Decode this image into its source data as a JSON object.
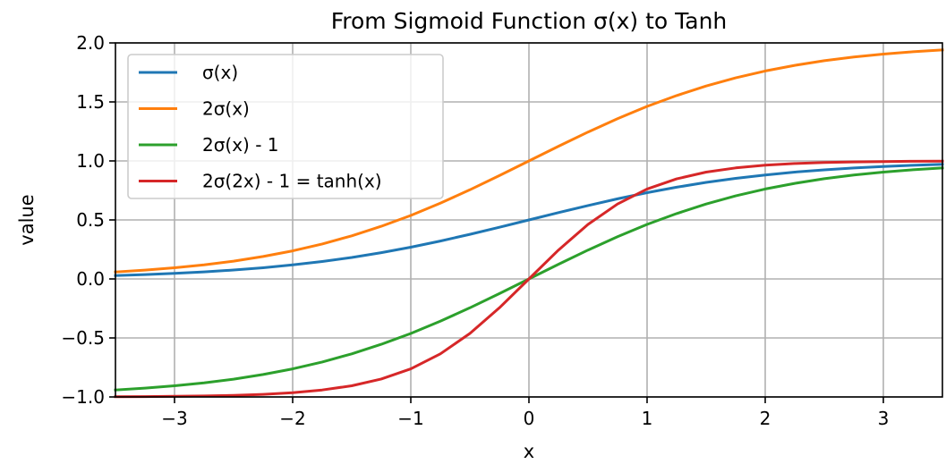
{
  "chart_data": {
    "type": "line",
    "title": "From Sigmoid Function σ(x) to Tanh",
    "xlabel": "x",
    "ylabel": "value",
    "xlim": [
      -3.5,
      3.5
    ],
    "ylim": [
      -1.0,
      2.0
    ],
    "xticks": [
      -3,
      -2,
      -1,
      0,
      1,
      2,
      3
    ],
    "xtick_labels": [
      "−3",
      "−2",
      "−1",
      "0",
      "1",
      "2",
      "3"
    ],
    "yticks": [
      -1.0,
      -0.5,
      0.0,
      0.5,
      1.0,
      1.5,
      2.0
    ],
    "ytick_labels": [
      "−1.0",
      "−0.5",
      "0.0",
      "0.5",
      "1.0",
      "1.5",
      "2.0"
    ],
    "grid": true,
    "legend_position": "upper-left",
    "x": [
      -3.5,
      -3.25,
      -3.0,
      -2.75,
      -2.5,
      -2.25,
      -2.0,
      -1.75,
      -1.5,
      -1.25,
      -1.0,
      -0.75,
      -0.5,
      -0.25,
      0.0,
      0.25,
      0.5,
      0.75,
      1.0,
      1.25,
      1.5,
      1.75,
      2.0,
      2.25,
      2.5,
      2.75,
      3.0,
      3.25,
      3.5
    ],
    "series": [
      {
        "name": "σ(x)",
        "color": "#1f77b4",
        "values": [
          0.029,
          0.037,
          0.047,
          0.06,
          0.076,
          0.095,
          0.119,
          0.148,
          0.182,
          0.223,
          0.269,
          0.321,
          0.378,
          0.438,
          0.5,
          0.562,
          0.622,
          0.679,
          0.731,
          0.777,
          0.818,
          0.852,
          0.881,
          0.905,
          0.924,
          0.94,
          0.953,
          0.963,
          0.971
        ]
      },
      {
        "name": "2σ(x)",
        "color": "#ff7f0e",
        "values": [
          0.059,
          0.075,
          0.095,
          0.12,
          0.151,
          0.19,
          0.238,
          0.296,
          0.365,
          0.446,
          0.538,
          0.642,
          0.755,
          0.876,
          1.0,
          1.124,
          1.245,
          1.358,
          1.462,
          1.554,
          1.635,
          1.704,
          1.762,
          1.81,
          1.849,
          1.88,
          1.905,
          1.925,
          1.941
        ]
      },
      {
        "name": "2σ(x) - 1",
        "color": "#2ca02c",
        "values": [
          -0.941,
          -0.925,
          -0.905,
          -0.88,
          -0.849,
          -0.81,
          -0.762,
          -0.704,
          -0.635,
          -0.554,
          -0.462,
          -0.358,
          -0.245,
          -0.124,
          0.0,
          0.124,
          0.245,
          0.358,
          0.462,
          0.554,
          0.635,
          0.704,
          0.762,
          0.81,
          0.849,
          0.88,
          0.905,
          0.925,
          0.941
        ]
      },
      {
        "name": "2σ(2x) - 1 = tanh(x)",
        "color": "#d62728",
        "values": [
          -0.998,
          -0.997,
          -0.995,
          -0.992,
          -0.987,
          -0.978,
          -0.964,
          -0.941,
          -0.905,
          -0.848,
          -0.762,
          -0.635,
          -0.462,
          -0.245,
          0.0,
          0.245,
          0.462,
          0.635,
          0.762,
          0.848,
          0.905,
          0.941,
          0.964,
          0.978,
          0.987,
          0.992,
          0.995,
          0.997,
          0.998
        ]
      }
    ]
  }
}
